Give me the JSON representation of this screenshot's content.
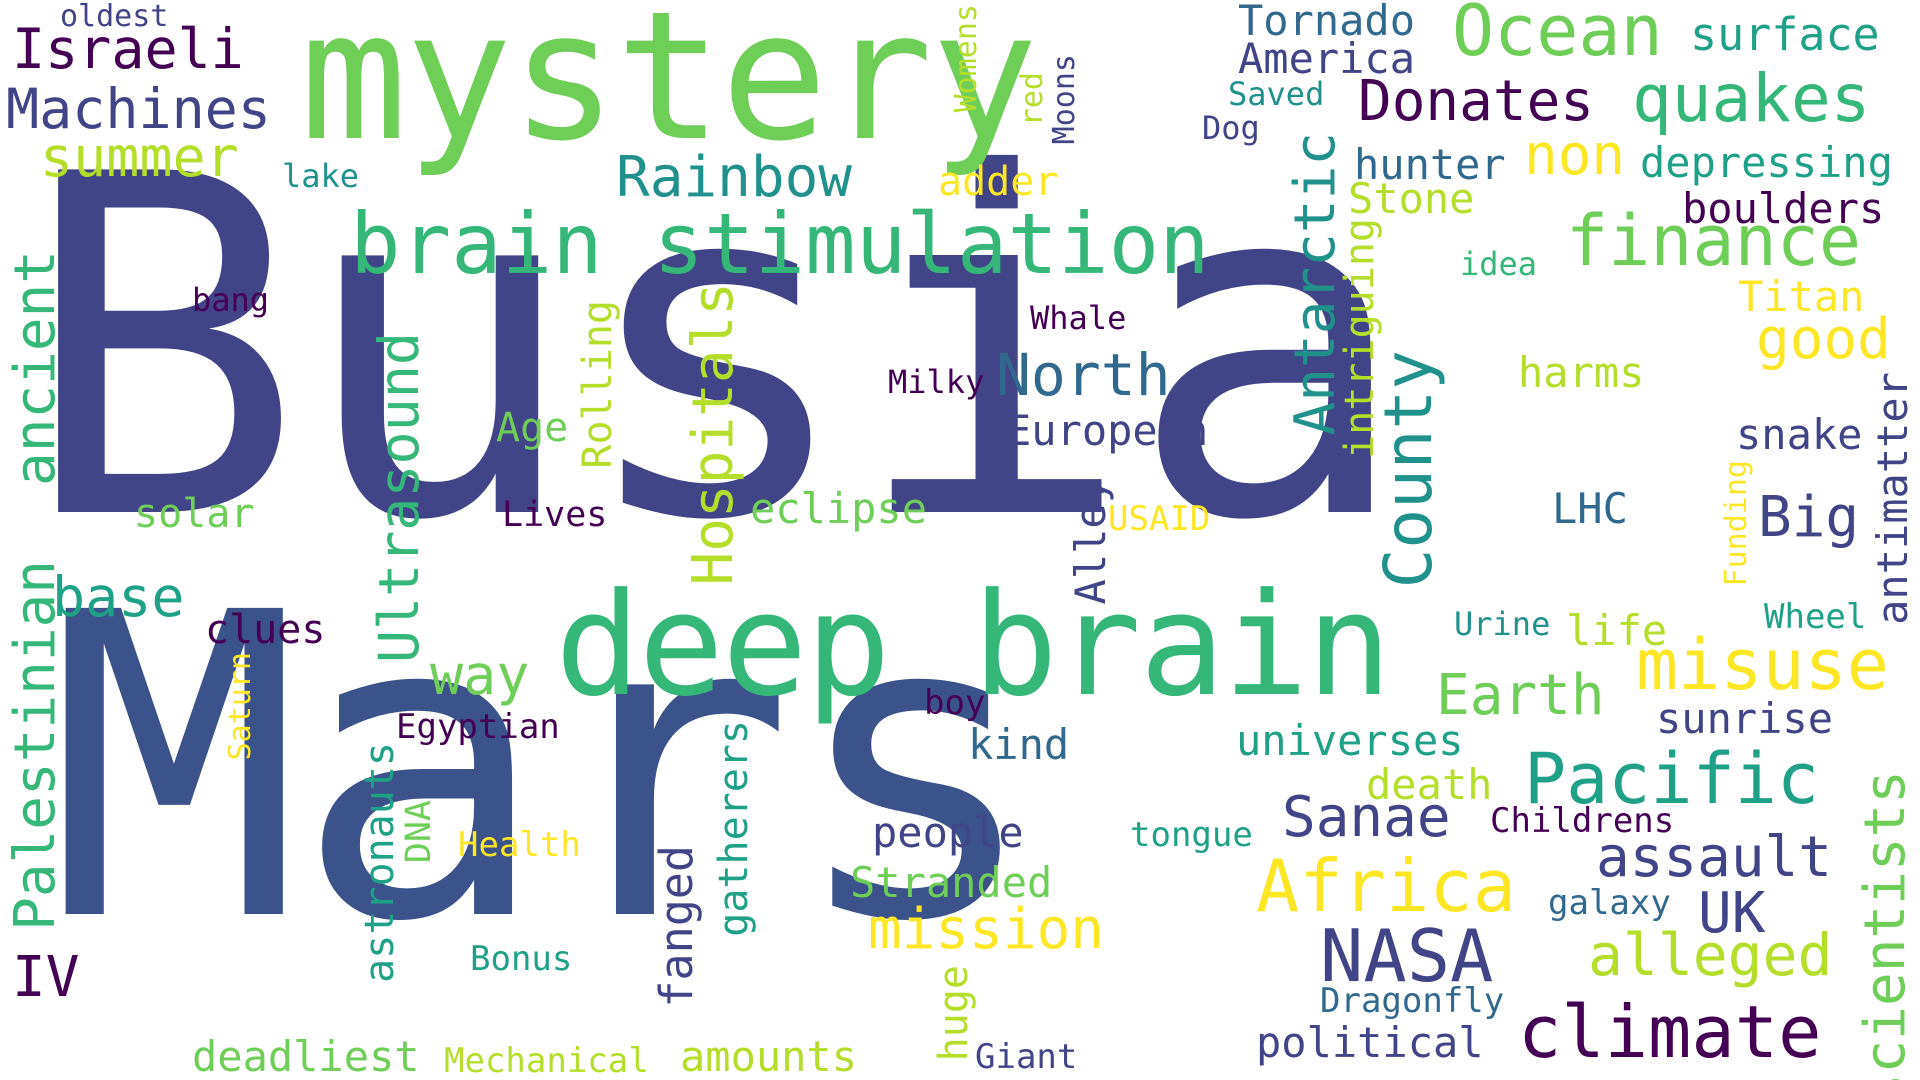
{
  "palette": {
    "dark_purple": "#440154",
    "indigo": "#414487",
    "slate_blue": "#3b528b",
    "blue_teal": "#31688e",
    "teal": "#21918c",
    "green_teal": "#1fa187",
    "green": "#35b779",
    "light_green": "#6ece58",
    "lime": "#b5de2b",
    "yellow": "#fde725"
  },
  "words": [
    {
      "text": "Busia",
      "color": "#414487"
    },
    {
      "text": "Mars",
      "color": "#3b528b"
    },
    {
      "text": "mystery",
      "color": "#6ece58"
    },
    {
      "text": "deep brain",
      "color": "#35b779"
    },
    {
      "text": "brain stimulation",
      "color": "#35b779"
    },
    {
      "text": "Israeli",
      "color": "#440154"
    },
    {
      "text": "Machines",
      "color": "#414487"
    },
    {
      "text": "summer",
      "color": "#b5de2b"
    },
    {
      "text": "oldest",
      "color": "#414487"
    },
    {
      "text": "lake",
      "color": "#21918c"
    },
    {
      "text": "bang",
      "color": "#440154"
    },
    {
      "text": "Palestinian",
      "color": "#35b779"
    },
    {
      "text": "ancient",
      "color": "#35b779"
    },
    {
      "text": "base",
      "color": "#1fa187"
    },
    {
      "text": "clues",
      "color": "#440154"
    },
    {
      "text": "IV",
      "color": "#440154"
    },
    {
      "text": "solar",
      "color": "#6ece58"
    },
    {
      "text": "Lives",
      "color": "#440154"
    },
    {
      "text": "Age",
      "color": "#6ece58"
    },
    {
      "text": "Ultrasound",
      "color": "#35b779"
    },
    {
      "text": "Rolling",
      "color": "#b5de2b"
    },
    {
      "text": "Hospitals",
      "color": "#b5de2b"
    },
    {
      "text": "eclipse",
      "color": "#6ece58"
    },
    {
      "text": "way",
      "color": "#6ece58"
    },
    {
      "text": "Egyptian",
      "color": "#440154"
    },
    {
      "text": "Saturn",
      "color": "#fde725"
    },
    {
      "text": "astronauts",
      "color": "#1fa187"
    },
    {
      "text": "DNA",
      "color": "#6ece58"
    },
    {
      "text": "Health",
      "color": "#fde725"
    },
    {
      "text": "Bonus",
      "color": "#1fa187"
    },
    {
      "text": "deadliest",
      "color": "#6ece58"
    },
    {
      "text": "Mechanical",
      "color": "#b5de2b"
    },
    {
      "text": "amounts",
      "color": "#b5de2b"
    },
    {
      "text": "gatherers",
      "color": "#1fa187"
    },
    {
      "text": "fanged",
      "color": "#414487"
    },
    {
      "text": "huge",
      "color": "#b5de2b"
    },
    {
      "text": "Giant",
      "color": "#414487"
    },
    {
      "text": "Stranded",
      "color": "#6ece58"
    },
    {
      "text": "mission",
      "color": "#fde725"
    },
    {
      "text": "people",
      "color": "#414487"
    },
    {
      "text": "boy",
      "color": "#440154"
    },
    {
      "text": "kind",
      "color": "#31688e"
    },
    {
      "text": "tongue",
      "color": "#1fa187"
    },
    {
      "text": "Rainbow",
      "color": "#21918c"
    },
    {
      "text": "adder",
      "color": "#fde725"
    },
    {
      "text": "Womens",
      "color": "#b5de2b"
    },
    {
      "text": "red",
      "color": "#b5de2b"
    },
    {
      "text": "Moons",
      "color": "#414487"
    },
    {
      "text": "Whale",
      "color": "#440154"
    },
    {
      "text": "Milky",
      "color": "#440154"
    },
    {
      "text": "North",
      "color": "#31688e"
    },
    {
      "text": "European",
      "color": "#414487"
    },
    {
      "text": "Alley",
      "color": "#414487"
    },
    {
      "text": "USAID",
      "color": "#fde725"
    },
    {
      "text": "Tornado",
      "color": "#31688e"
    },
    {
      "text": "America",
      "color": "#414487"
    },
    {
      "text": "Saved",
      "color": "#21918c"
    },
    {
      "text": "Dog",
      "color": "#414487"
    },
    {
      "text": "Ocean",
      "color": "#6ece58"
    },
    {
      "text": "Donates",
      "color": "#440154"
    },
    {
      "text": "quakes",
      "color": "#35b779"
    },
    {
      "text": "surface",
      "color": "#1fa187"
    },
    {
      "text": "hunter",
      "color": "#31688e"
    },
    {
      "text": "non",
      "color": "#fde725"
    },
    {
      "text": "depressing",
      "color": "#1fa187"
    },
    {
      "text": "Stone",
      "color": "#b5de2b"
    },
    {
      "text": "boulders",
      "color": "#440154"
    },
    {
      "text": "Antarctic",
      "color": "#21918c"
    },
    {
      "text": "intriguing",
      "color": "#b5de2b"
    },
    {
      "text": "County",
      "color": "#21918c"
    },
    {
      "text": "finance",
      "color": "#6ece58"
    },
    {
      "text": "idea",
      "color": "#35b779"
    },
    {
      "text": "Titan",
      "color": "#fde725"
    },
    {
      "text": "good",
      "color": "#fde725"
    },
    {
      "text": "harms",
      "color": "#b5de2b"
    },
    {
      "text": "snake",
      "color": "#414487"
    },
    {
      "text": "antimatter",
      "color": "#414487"
    },
    {
      "text": "LHC",
      "color": "#31688e"
    },
    {
      "text": "Big",
      "color": "#414487"
    },
    {
      "text": "Funding",
      "color": "#fde725"
    },
    {
      "text": "Wheel",
      "color": "#1fa187"
    },
    {
      "text": "Urine",
      "color": "#21918c"
    },
    {
      "text": "life",
      "color": "#b5de2b"
    },
    {
      "text": "misuse",
      "color": "#fde725"
    },
    {
      "text": "Earth",
      "color": "#6ece58"
    },
    {
      "text": "sunrise",
      "color": "#414487"
    },
    {
      "text": "universes",
      "color": "#1fa187"
    },
    {
      "text": "death",
      "color": "#b5de2b"
    },
    {
      "text": "Pacific",
      "color": "#1fa187"
    },
    {
      "text": "Sanae",
      "color": "#414487"
    },
    {
      "text": "Childrens",
      "color": "#440154"
    },
    {
      "text": "Africa",
      "color": "#fde725"
    },
    {
      "text": "assault",
      "color": "#414487"
    },
    {
      "text": "scientists",
      "color": "#6ece58"
    },
    {
      "text": "galaxy",
      "color": "#31688e"
    },
    {
      "text": "UK",
      "color": "#414487"
    },
    {
      "text": "NASA",
      "color": "#414487"
    },
    {
      "text": "alleged",
      "color": "#b5de2b"
    },
    {
      "text": "Dragonfly",
      "color": "#31688e"
    },
    {
      "text": "political",
      "color": "#414487"
    },
    {
      "text": "climate",
      "color": "#440154"
    }
  ]
}
